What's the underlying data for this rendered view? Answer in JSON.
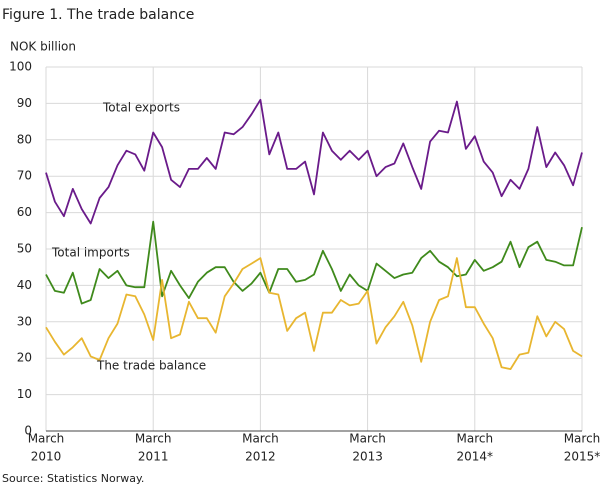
{
  "chart_data": {
    "type": "line",
    "title": "Figure 1. The trade balance",
    "y_label": "NOK billion",
    "source": "Source: Statistics Norway.",
    "categories": [
      [
        "March",
        "2010"
      ],
      null,
      null,
      null,
      null,
      null,
      null,
      null,
      null,
      null,
      null,
      null,
      [
        "March",
        "2011"
      ],
      null,
      null,
      null,
      null,
      null,
      null,
      null,
      null,
      null,
      null,
      null,
      [
        "March",
        "2012"
      ],
      null,
      null,
      null,
      null,
      null,
      null,
      null,
      null,
      null,
      null,
      null,
      [
        "March",
        "2013"
      ],
      null,
      null,
      null,
      null,
      null,
      null,
      null,
      null,
      null,
      null,
      null,
      [
        "March",
        "2014*"
      ],
      null,
      null,
      null,
      null,
      null,
      null,
      null,
      null,
      null,
      null,
      null,
      [
        "March",
        "2015*"
      ]
    ],
    "series": [
      {
        "name": "Total exports",
        "color": "#6a1b8a",
        "values": [
          71,
          63,
          59,
          66.5,
          61,
          57,
          64,
          67,
          73,
          77,
          76,
          71.5,
          82,
          78,
          69,
          67,
          72,
          72,
          75,
          72,
          82,
          81.5,
          83.5,
          87,
          91,
          76,
          82,
          72,
          72,
          74,
          65,
          82,
          77,
          74.5,
          77,
          74.5,
          77,
          70,
          72.5,
          73.5,
          79,
          72.5,
          66.5,
          79.5,
          82.5,
          82,
          90.5,
          77.5,
          81,
          74,
          71,
          64.5,
          69,
          66.5,
          72,
          83.5,
          72.5,
          76.5,
          73,
          67.5,
          76.5
        ]
      },
      {
        "name": "Total imports",
        "color": "#3f8a1c",
        "values": [
          43,
          38.5,
          38,
          43.5,
          35,
          36,
          44.5,
          42,
          44,
          40,
          39.5,
          39.5,
          57.5,
          37,
          44,
          40,
          36.5,
          41,
          43.5,
          45,
          45,
          41,
          38.5,
          40.5,
          43.5,
          38,
          44.5,
          44.5,
          41,
          41.5,
          43,
          49.5,
          44.5,
          38.5,
          43,
          40,
          38.5,
          46,
          44,
          42,
          43,
          43.5,
          47.5,
          49.5,
          46.5,
          45,
          42.5,
          43,
          47,
          44,
          45,
          46.5,
          52,
          45,
          50.5,
          52,
          47,
          46.5,
          45.5,
          45.5,
          56
        ]
      },
      {
        "name": "The trade balance",
        "color": "#e8b630",
        "values": [
          28.5,
          24.5,
          21,
          23,
          25.5,
          20.5,
          19.5,
          25.5,
          29.5,
          37.5,
          37,
          32,
          25,
          41.5,
          25.5,
          26.5,
          35.5,
          31,
          31,
          27,
          37,
          40.5,
          44.5,
          46,
          47.5,
          38,
          37.5,
          27.5,
          31,
          32.5,
          22,
          32.5,
          32.5,
          36,
          34.5,
          35,
          38.5,
          24,
          28.5,
          31.5,
          35.5,
          29,
          19,
          30,
          36,
          37,
          47.5,
          34,
          34,
          29.5,
          25.5,
          17.5,
          17,
          21,
          21.5,
          31.5,
          26,
          30,
          28,
          22,
          20.5
        ]
      }
    ],
    "ylim": [
      0,
      100
    ],
    "yticks": [
      0,
      10,
      20,
      30,
      40,
      50,
      60,
      70,
      80,
      90,
      100
    ],
    "grid": true
  }
}
